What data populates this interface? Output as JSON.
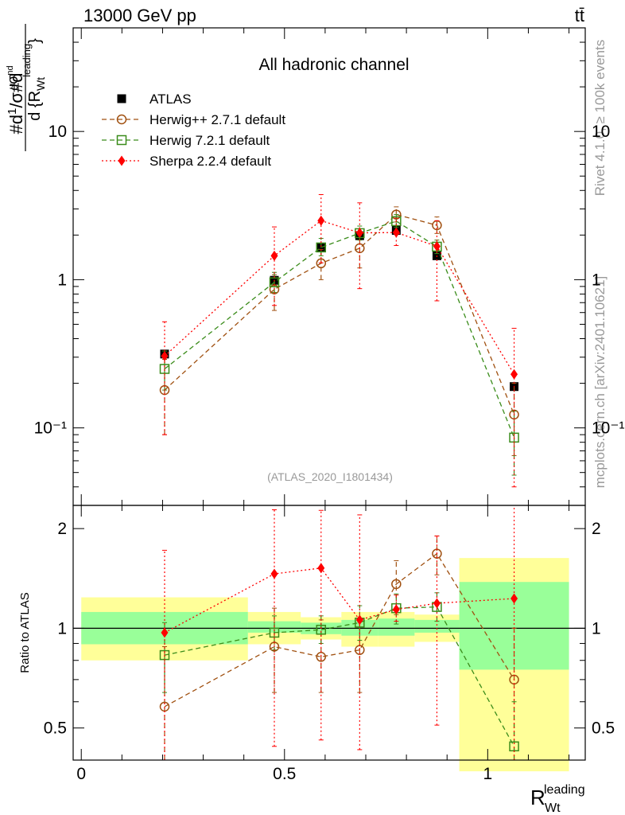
{
  "header": {
    "energy_label": "13000 GeV pp",
    "process_label": "tt̄"
  },
  "side_labels": {
    "rivet": "Rivet 4.1.0, ≥ 100k events",
    "mcplots": "mcplots.cern.ch [arXiv:2401.10621]"
  },
  "chart_data": [
    {
      "type": "scatter",
      "panel": "main",
      "title": "All hadronic channel",
      "analysis_id": "(ATLAS_2020_I1801434)",
      "ylabel": "#d¹/σ#d dσ^nd / d {R_Wt^leading}",
      "yscale": "log",
      "ylim": [
        0.03,
        50
      ],
      "xlim": [
        -0.02,
        1.24
      ],
      "yticks": [
        {
          "value": 10,
          "label": "10"
        },
        {
          "value": 1,
          "label": "1"
        },
        {
          "value": 0.1,
          "label": "10⁻¹"
        }
      ],
      "bins": [
        {
          "lo": 0.0,
          "hi": 0.41
        },
        {
          "lo": 0.41,
          "hi": 0.54
        },
        {
          "lo": 0.54,
          "hi": 0.64
        },
        {
          "lo": 0.64,
          "hi": 0.73
        },
        {
          "lo": 0.73,
          "hi": 0.82
        },
        {
          "lo": 0.82,
          "hi": 0.93
        },
        {
          "lo": 0.93,
          "hi": 1.2
        }
      ],
      "series": [
        {
          "name": "ATLAS",
          "color": "#000000",
          "marker": "square-filled",
          "line": "none",
          "x": [
            0.205,
            0.475,
            0.59,
            0.685,
            0.775,
            0.875,
            1.065
          ],
          "y": [
            0.315,
            0.99,
            1.65,
            1.98,
            2.15,
            1.45,
            0.19
          ]
        },
        {
          "name": "Herwig++ 2.7.1 default",
          "color": "#a05010",
          "marker": "circle-open",
          "line": "dashed",
          "x": [
            0.205,
            0.475,
            0.59,
            0.685,
            0.775,
            0.875,
            1.065
          ],
          "y": [
            0.18,
            0.86,
            1.29,
            1.63,
            2.75,
            2.33,
            0.123
          ],
          "err_low": [
            0.09,
            0.62,
            1.0,
            1.2,
            2.45,
            2.05,
            0.065
          ],
          "err_high": [
            0.29,
            1.08,
            1.6,
            2.0,
            3.1,
            2.65,
            0.2
          ]
        },
        {
          "name": "Herwig 7.2.1 default",
          "color": "#3a8c1a",
          "marker": "square-open",
          "line": "dashed",
          "x": [
            0.205,
            0.475,
            0.59,
            0.685,
            0.775,
            0.875,
            1.065
          ],
          "y": [
            0.25,
            0.96,
            1.65,
            2.06,
            2.48,
            1.67,
            0.086
          ],
          "err_low": [
            0.18,
            0.82,
            1.45,
            1.85,
            2.25,
            1.5,
            0.048
          ],
          "err_high": [
            0.33,
            1.12,
            1.9,
            2.3,
            2.75,
            1.85,
            0.13
          ]
        },
        {
          "name": "Sherpa 2.2.4 default",
          "color": "#ff0000",
          "marker": "diamond-filled",
          "line": "dotted",
          "x": [
            0.205,
            0.475,
            0.59,
            0.685,
            0.775,
            0.875,
            1.065
          ],
          "y": [
            0.305,
            1.45,
            2.5,
            2.07,
            2.08,
            1.68,
            0.23
          ],
          "err_low": [
            0.09,
            0.67,
            1.3,
            0.87,
            1.7,
            0.72,
            0.04
          ],
          "err_high": [
            0.52,
            2.27,
            3.75,
            3.3,
            2.6,
            2.5,
            0.47
          ]
        }
      ]
    },
    {
      "type": "scatter",
      "panel": "ratio",
      "xlabel": "R_Wt^leading",
      "ylabel": "Ratio to ATLAS",
      "yscale": "log",
      "ylim": [
        0.4,
        2.35
      ],
      "xlim": [
        -0.02,
        1.24
      ],
      "xticks": [
        {
          "value": 0,
          "label": "0"
        },
        {
          "value": 0.5,
          "label": "0.5"
        },
        {
          "value": 1,
          "label": "1"
        }
      ],
      "yticks": [
        {
          "value": 0.5,
          "label": "0.5"
        },
        {
          "value": 1,
          "label": "1"
        },
        {
          "value": 2,
          "label": "2"
        }
      ],
      "bands": [
        {
          "lo": 0.0,
          "hi": 0.41,
          "stat_lo": 0.895,
          "stat_hi": 1.12,
          "tot_lo": 0.8,
          "tot_hi": 1.24
        },
        {
          "lo": 0.41,
          "hi": 0.54,
          "stat_lo": 0.97,
          "stat_hi": 1.05,
          "tot_lo": 0.895,
          "tot_hi": 1.12
        },
        {
          "lo": 0.54,
          "hi": 0.64,
          "stat_lo": 0.96,
          "stat_hi": 1.04,
          "tot_lo": 0.925,
          "tot_hi": 1.08
        },
        {
          "lo": 0.64,
          "hi": 0.73,
          "stat_lo": 0.95,
          "stat_hi": 1.06,
          "tot_lo": 0.88,
          "tot_hi": 1.12
        },
        {
          "lo": 0.73,
          "hi": 0.82,
          "stat_lo": 0.95,
          "stat_hi": 1.07,
          "tot_lo": 0.88,
          "tot_hi": 1.12
        },
        {
          "lo": 0.82,
          "hi": 0.93,
          "stat_lo": 0.97,
          "stat_hi": 1.06,
          "tot_lo": 0.91,
          "tot_hi": 1.1
        },
        {
          "lo": 0.93,
          "hi": 1.2,
          "stat_lo": 0.75,
          "stat_hi": 1.38,
          "tot_lo": 0.37,
          "tot_hi": 1.63
        }
      ],
      "series": [
        {
          "name": "Herwig++ 2.7.1 default",
          "x": [
            0.205,
            0.475,
            0.59,
            0.685,
            0.775,
            0.875,
            1.065
          ],
          "y": [
            0.58,
            0.88,
            0.82,
            0.86,
            1.36,
            1.68,
            0.7
          ],
          "err_low": [
            0.32,
            0.64,
            0.64,
            0.64,
            1.1,
            1.45,
            0.32
          ],
          "err_high": [
            0.88,
            1.15,
            1.06,
            1.06,
            1.6,
            1.9,
            1.0
          ]
        },
        {
          "name": "Herwig 7.2.1 default",
          "x": [
            0.205,
            0.475,
            0.59,
            0.685,
            0.775,
            0.875,
            1.065
          ],
          "y": [
            0.83,
            0.97,
            0.99,
            1.04,
            1.15,
            1.16,
            0.44
          ],
          "err_low": [
            0.64,
            0.86,
            0.9,
            0.92,
            1.03,
            1.05,
            0.3
          ],
          "err_high": [
            1.04,
            1.09,
            1.09,
            1.17,
            1.27,
            1.28,
            0.6
          ]
        },
        {
          "name": "Sherpa 2.2.4 default",
          "x": [
            0.205,
            0.475,
            0.59,
            0.685,
            0.775,
            0.875,
            1.065
          ],
          "y": [
            0.97,
            1.46,
            1.52,
            1.06,
            1.14,
            1.19,
            1.23
          ],
          "err_low": [
            0.3,
            0.44,
            0.46,
            0.43,
            1.05,
            0.51,
            0.3
          ],
          "err_high": [
            1.72,
            2.28,
            2.27,
            2.2,
            1.26,
            1.9,
            2.35
          ]
        }
      ]
    }
  ]
}
